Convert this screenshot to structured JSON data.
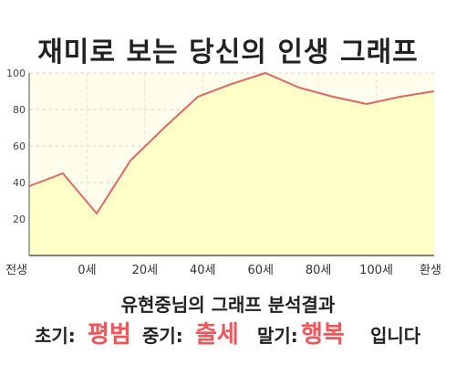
{
  "page": {
    "title": "재미로 보는 당신의 인생 그래프",
    "summary": "유현중님의 그래프 분석결과",
    "result": {
      "early_label": "초기:",
      "early_value": "평범",
      "mid_label": "중기:",
      "mid_value": "출세",
      "late_label": "말기:",
      "late_value": "행복",
      "suffix": "입니다"
    }
  },
  "colors": {
    "line": "#e06666",
    "fill": "#ffffc8",
    "plot_bg": "#fffdeb",
    "accent": "#f0555a"
  },
  "chart_data": {
    "type": "area",
    "title": "재미로 보는 당신의 인생 그래프",
    "xlabel": "",
    "ylabel": "",
    "ylim": [
      0,
      100
    ],
    "y_ticks": [
      20,
      40,
      60,
      80,
      100
    ],
    "x_tick_labels": [
      "전생",
      "0세",
      "20세",
      "40세",
      "60세",
      "80세",
      "100세",
      "환생"
    ],
    "grid": true,
    "series": [
      {
        "x": [
          "전생",
          "0세",
          "",
          "20세",
          "",
          "40세",
          "",
          "60세",
          "",
          "80세",
          "",
          "100세",
          "환생"
        ],
        "values": [
          38,
          45,
          23,
          52,
          70,
          87,
          94,
          100,
          92,
          87,
          83,
          87,
          90
        ]
      }
    ]
  }
}
